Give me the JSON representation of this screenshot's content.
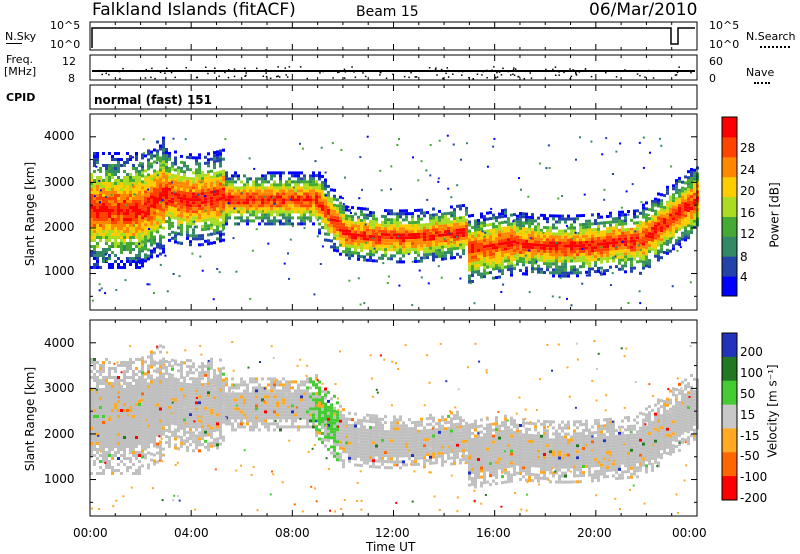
{
  "header": {
    "station": "Falkland Islands (fitACF)",
    "beam": "Beam 15",
    "date": "06/Mar/2010"
  },
  "top_panel": {
    "left_label": "N.Sky",
    "right_label": "N.Search",
    "ticks_left": [
      "10^5",
      "10^0"
    ],
    "ticks_right": [
      "10^5",
      "10^0"
    ]
  },
  "freq_panel": {
    "left_label_1": "Freq.",
    "left_label_2": "[MHz]",
    "left_ticks": [
      "12",
      "8"
    ],
    "right_label": "Nave",
    "right_ticks": [
      "60",
      "0"
    ]
  },
  "cpid": {
    "label": "CPID",
    "value": "normal (fast) 151"
  },
  "colors": {
    "power": [
      "#0000ff",
      "#2244aa",
      "#338866",
      "#44aa33",
      "#aadd22",
      "#ffcc00",
      "#ff8800",
      "#ff4400",
      "#ff0000"
    ],
    "velocity": [
      "#2233bb",
      "#227722",
      "#44cc33",
      "#c8c8c8",
      "#ffaa22",
      "#ff6600",
      "#ff0000"
    ],
    "ground_scatter": "#c0c0c0"
  },
  "chart_data": [
    {
      "type": "heatmap",
      "title": "",
      "ylabel": "Slant Range [km]",
      "xlabel": "Time UT",
      "xticks": [
        "00:00",
        "04:00",
        "08:00",
        "12:00",
        "16:00",
        "20:00",
        "00:00"
      ],
      "yticks": [
        "1000",
        "2000",
        "3000",
        "4000"
      ],
      "ylim": [
        200,
        4500
      ],
      "colorbar": {
        "label": "Power [dB]",
        "ticks": [
          "4",
          "8",
          "12",
          "16",
          "20",
          "24",
          "28"
        ],
        "range": [
          0,
          32
        ]
      }
    },
    {
      "type": "heatmap",
      "title": "",
      "ylabel": "Slant Range [km]",
      "xlabel": "Time UT",
      "xticks": [
        "00:00",
        "04:00",
        "08:00",
        "12:00",
        "16:00",
        "20:00",
        "00:00"
      ],
      "yticks": [
        "1000",
        "2000",
        "3000",
        "4000"
      ],
      "ylim": [
        200,
        4500
      ],
      "colorbar": {
        "label": "Velocity [m s⁻¹]",
        "ticks": [
          "200",
          "100",
          "50",
          "15",
          "-15",
          "-50",
          "-100",
          "-200"
        ],
        "range": [
          -250,
          250
        ]
      }
    }
  ]
}
